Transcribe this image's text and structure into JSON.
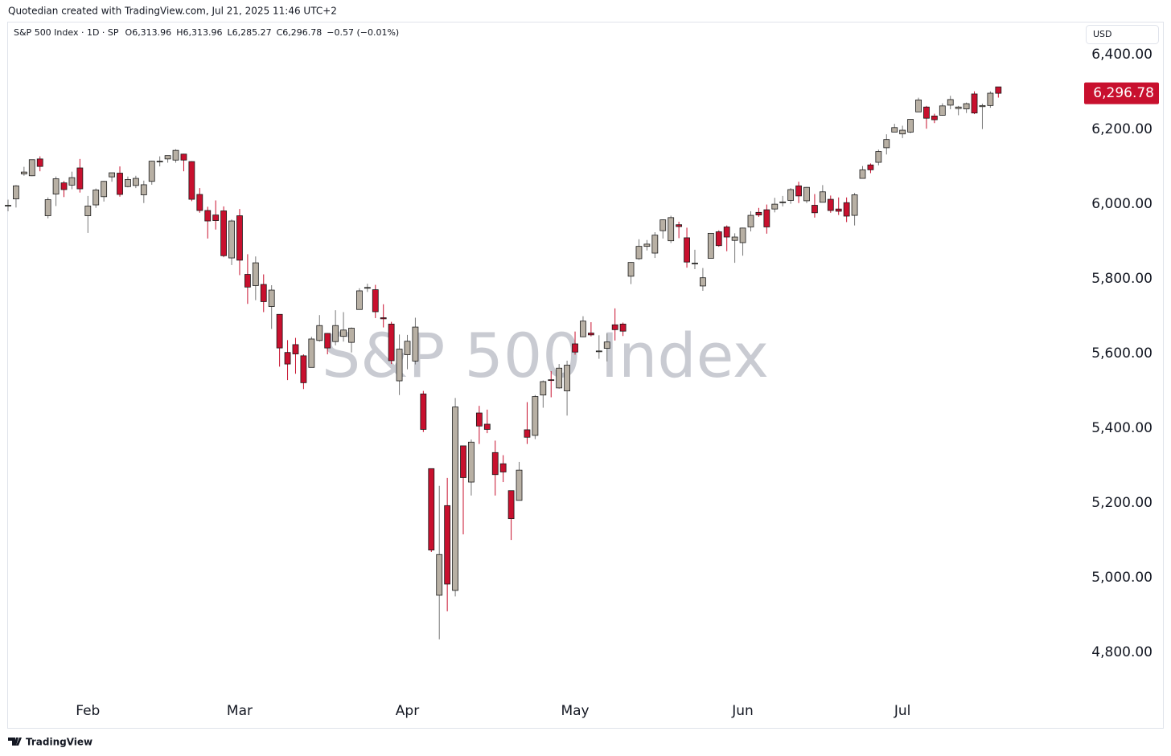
{
  "page": {
    "credit": "Quotedian created with TradingView.com, Jul 21, 2025 11:46 UTC+2",
    "footer": "TradingView"
  },
  "chart_data": {
    "type": "candlestick",
    "title": "S&P 500 Index",
    "header": {
      "symbol": "S&P 500 Index · 1D · SP",
      "open": "O6,313.96",
      "high": "H6,313.96",
      "low": "L6,285.27",
      "close": "C6,296.78",
      "change": "−0.57 (−0.01%)"
    },
    "currency": "USD",
    "last_label": {
      "value": 6296.78,
      "label": "6,296.78"
    },
    "up_color": "#b8b0a4",
    "down_color": "#c8102e",
    "edge_color": "#1a1a1a",
    "last_color": "#c8102e",
    "ylim": [
      4684,
      6482
    ],
    "yticks": [
      {
        "value": 4800,
        "label": "4,800.00"
      },
      {
        "value": 5000,
        "label": "5,000.00"
      },
      {
        "value": 5200,
        "label": "5,200.00"
      },
      {
        "value": 5400,
        "label": "5,400.00"
      },
      {
        "value": 5600,
        "label": "5,600.00"
      },
      {
        "value": 5800,
        "label": "5,800.00"
      },
      {
        "value": 6000,
        "label": "6,000.00"
      },
      {
        "value": 6200,
        "label": "6,200.00"
      },
      {
        "value": 6400,
        "label": "6,400.00"
      }
    ],
    "categories": [
      null,
      null,
      null,
      null,
      null,
      null,
      null,
      null,
      null,
      null,
      "Feb",
      null,
      null,
      null,
      null,
      null,
      null,
      null,
      null,
      null,
      null,
      null,
      null,
      null,
      null,
      null,
      null,
      null,
      null,
      "Mar",
      null,
      null,
      null,
      null,
      null,
      null,
      null,
      null,
      null,
      null,
      null,
      null,
      null,
      null,
      null,
      null,
      null,
      null,
      null,
      null,
      "Apr",
      null,
      null,
      null,
      null,
      null,
      null,
      null,
      null,
      null,
      null,
      null,
      null,
      null,
      null,
      null,
      null,
      null,
      null,
      null,
      null,
      "May",
      null,
      null,
      null,
      null,
      null,
      null,
      null,
      null,
      null,
      null,
      null,
      null,
      null,
      null,
      null,
      null,
      null,
      null,
      null,
      null,
      "Jun",
      null,
      null,
      null,
      null,
      null,
      null,
      null,
      null,
      null,
      null,
      null,
      null,
      null,
      null,
      null,
      null,
      null,
      null,
      null,
      "Jul",
      null,
      null,
      null,
      null,
      null,
      null,
      null,
      null,
      null,
      null,
      null,
      null
    ],
    "open": [
      5995,
      6014,
      6081,
      6076,
      6121,
      5969,
      6027,
      6057,
      6051,
      6097,
      5969,
      5998,
      6020,
      6073,
      6083,
      6047,
      6050,
      6025,
      6061,
      6115,
      6121,
      6118,
      6134,
      6114,
      6026,
      5983,
      5971,
      5982,
      5856,
      5969,
      5812,
      5782,
      5785,
      5726,
      5705,
      5603,
      5624,
      5594,
      5563,
      5635,
      5654,
      5632,
      5646,
      5630,
      5718,
      5775,
      5771,
      5696,
      5679,
      5527,
      5597,
      5580,
      5492,
      5292,
      4953,
      5193,
      4966,
      5353,
      5256,
      5441,
      5411,
      5335,
      5305,
      5233,
      5207,
      5396,
      5381,
      5489,
      5530,
      5508,
      5500,
      5626,
      5645,
      5655,
      5606,
      5614,
      5677,
      5679,
      5807,
      5854,
      5887,
      5869,
      5929,
      5902,
      5945,
      5910,
      5841,
      5781,
      5855,
      5926,
      5939,
      5903,
      5897,
      5939,
      5978,
      5985,
      5987,
      6005,
      6010,
      6049,
      6009,
      5997,
      6005,
      6013,
      5987,
      6004,
      5970,
      6069,
      6105,
      6112,
      6151,
      6193,
      6188,
      6193,
      6247,
      6260,
      6236,
      6238,
      6265,
      6256,
      6255,
      6295,
      6261,
      6264,
      6313.96
    ],
    "high": [
      6012,
      6051,
      6100,
      6119,
      6128,
      6018,
      6074,
      6062,
      6087,
      6121,
      6022,
      6042,
      6062,
      6084,
      6101,
      6074,
      6076,
      6063,
      6116,
      6128,
      6130,
      6147,
      6135,
      6115,
      6043,
      5993,
      6010,
      5994,
      5959,
      5987,
      5866,
      5860,
      5812,
      5783,
      5705,
      5636,
      5642,
      5598,
      5645,
      5703,
      5655,
      5716,
      5711,
      5670,
      5775,
      5787,
      5784,
      5732,
      5685,
      5651,
      5650,
      5696,
      5500,
      5292,
      5246,
      5267,
      5481,
      5353,
      5370,
      5460,
      5450,
      5367,
      5328,
      5233,
      5310,
      5470,
      5489,
      5528,
      5553,
      5572,
      5581,
      5659,
      5700,
      5684,
      5649,
      5654,
      5721,
      5683,
      5845,
      5906,
      5904,
      5925,
      5959,
      5969,
      5953,
      5937,
      5878,
      5829,
      5922,
      5930,
      5943,
      5922,
      5937,
      5981,
      5990,
      5999,
      6017,
      6022,
      6043,
      6060,
      6046,
      6027,
      6051,
      6023,
      6018,
      6018,
      6030,
      6102,
      6109,
      6146,
      6187,
      6215,
      6210,
      6227,
      6285,
      6263,
      6242,
      6270,
      6290,
      6263,
      6272,
      6302,
      6269,
      6302,
      6313.96
    ],
    "low": [
      5981,
      5991,
      6076,
      6075,
      6088,
      5962,
      5995,
      6019,
      6040,
      6031,
      5923,
      5990,
      6007,
      6060,
      6020,
      6045,
      6043,
      6003,
      6052,
      6101,
      6111,
      6111,
      6088,
      6008,
      5977,
      5908,
      5932,
      5858,
      5837,
      5810,
      5733,
      5743,
      5711,
      5666,
      5565,
      5529,
      5546,
      5505,
      5563,
      5632,
      5598,
      5622,
      5632,
      5603,
      5718,
      5765,
      5695,
      5670,
      5572,
      5489,
      5558,
      5571,
      5390,
      5069,
      4835,
      4910,
      4950,
      5116,
      5220,
      5358,
      5387,
      5220,
      5256,
      5101,
      5207,
      5358,
      5371,
      5455,
      5483,
      5506,
      5434,
      5597,
      5644,
      5646,
      5586,
      5579,
      5635,
      5647,
      5786,
      5851,
      5876,
      5856,
      5908,
      5896,
      5909,
      5830,
      5826,
      5768,
      5855,
      5886,
      5874,
      5843,
      5862,
      5927,
      5966,
      5921,
      5978,
      5994,
      6001,
      6003,
      6003,
      5964,
      6005,
      5977,
      5971,
      5952,
      5943,
      6069,
      6083,
      6104,
      6133,
      6193,
      6177,
      6190,
      6247,
      6202,
      6217,
      6237,
      6254,
      6238,
      6244,
      6241,
      6201,
      6258,
      6285.27
    ],
    "close": [
      5997,
      6049,
      6086,
      6119,
      6101,
      6012,
      6068,
      6039,
      6071,
      6041,
      5995,
      6038,
      6061,
      6084,
      6026,
      6066,
      6069,
      6052,
      6115,
      6115,
      6130,
      6144,
      6118,
      6013,
      5983,
      5955,
      5956,
      5862,
      5955,
      5850,
      5778,
      5843,
      5739,
      5770,
      5615,
      5572,
      5599,
      5522,
      5639,
      5675,
      5615,
      5675,
      5663,
      5668,
      5768,
      5777,
      5712,
      5693,
      5581,
      5612,
      5633,
      5671,
      5397,
      5074,
      5062,
      4983,
      5457,
      5268,
      5363,
      5406,
      5397,
      5276,
      5283,
      5158,
      5288,
      5376,
      5485,
      5525,
      5529,
      5561,
      5569,
      5604,
      5687,
      5650,
      5607,
      5631,
      5664,
      5660,
      5844,
      5887,
      5893,
      5917,
      5958,
      5964,
      5940,
      5845,
      5842,
      5803,
      5922,
      5889,
      5912,
      5912,
      5936,
      5970,
      5971,
      5939,
      6000,
      6006,
      6039,
      6022,
      6045,
      5977,
      6033,
      5983,
      5981,
      5968,
      6025,
      6092,
      6092,
      6141,
      6173,
      6205,
      6198,
      6227,
      6279,
      6230,
      6226,
      6263,
      6280,
      6260,
      6269,
      6244,
      6264,
      6297,
      6296.78
    ]
  }
}
